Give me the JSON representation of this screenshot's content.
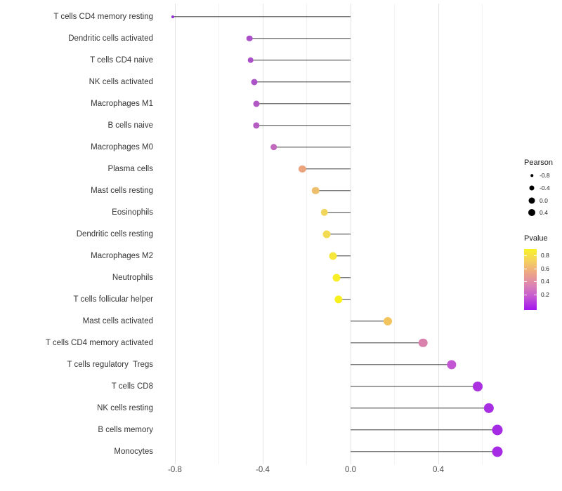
{
  "chart_data": {
    "type": "lollipop",
    "orientation": "horizontal",
    "title": "",
    "xlabel": "",
    "ylabel": "",
    "xlim": [
      -0.89,
      0.74
    ],
    "x_ticks": [
      -0.8,
      -0.4,
      0.0,
      0.4
    ],
    "x_tick_labels": [
      "-0.8",
      "-0.4",
      "0.0",
      "0.4"
    ],
    "x_minor_ticks": [
      -0.6,
      -0.2,
      0.2,
      0.6
    ],
    "grid": "vertical-major-and-minor",
    "stem_color": "#3d3d3d",
    "baseline_x": 0.0,
    "points": [
      {
        "label": "T cells CD4 memory resting",
        "pearson": -0.81,
        "size": 4,
        "color": "#9130d4"
      },
      {
        "label": "Dendritic cells activated",
        "pearson": -0.46,
        "size": 8.6,
        "color": "#aa4fc9"
      },
      {
        "label": "T cells CD4 naive",
        "pearson": -0.455,
        "size": 8.6,
        "color": "#aa4fc9"
      },
      {
        "label": "NK cells activated",
        "pearson": -0.44,
        "size": 9,
        "color": "#ad53c7"
      },
      {
        "label": "Macrophages M1",
        "pearson": -0.43,
        "size": 9,
        "color": "#b158c4"
      },
      {
        "label": "B cells naive",
        "pearson": -0.43,
        "size": 9.3,
        "color": "#b45cc2"
      },
      {
        "label": "Macrophages M0",
        "pearson": -0.35,
        "size": 9.7,
        "color": "#c169bd"
      },
      {
        "label": "Plasma cells",
        "pearson": -0.22,
        "size": 10.3,
        "color": "#eba47e"
      },
      {
        "label": "Mast cells resting",
        "pearson": -0.16,
        "size": 10.6,
        "color": "#edbf6d"
      },
      {
        "label": "Eosinophils",
        "pearson": -0.12,
        "size": 10.6,
        "color": "#f0d65c"
      },
      {
        "label": "Dendritic cells resting",
        "pearson": -0.11,
        "size": 11,
        "color": "#f2da52"
      },
      {
        "label": "Macrophages M2",
        "pearson": -0.08,
        "size": 11,
        "color": "#f5e83b"
      },
      {
        "label": "Neutrophils",
        "pearson": -0.065,
        "size": 11,
        "color": "#f7ee27"
      },
      {
        "label": "T cells follicular helper",
        "pearson": -0.055,
        "size": 11.3,
        "color": "#f8f01d"
      },
      {
        "label": "Mast cells activated",
        "pearson": 0.17,
        "size": 12,
        "color": "#f2c45e"
      },
      {
        "label": "T cells CD4 memory activated",
        "pearson": 0.33,
        "size": 12.6,
        "color": "#d982ae"
      },
      {
        "label": "T cells regulatory  Tregs",
        "pearson": 0.46,
        "size": 13.3,
        "color": "#c356d2"
      },
      {
        "label": "T cells CD8",
        "pearson": 0.58,
        "size": 14,
        "color": "#ab30e0"
      },
      {
        "label": "NK cells resting",
        "pearson": 0.63,
        "size": 14.3,
        "color": "#a82ee2"
      },
      {
        "label": "B cells memory",
        "pearson": 0.67,
        "size": 15,
        "color": "#a52ce4"
      },
      {
        "label": "Monocytes",
        "pearson": 0.67,
        "size": 15,
        "color": "#a52ce4"
      }
    ]
  },
  "legends": {
    "pearson": {
      "title": "Pearson",
      "entries": [
        {
          "label": "-0.8",
          "size": 3.5
        },
        {
          "label": "-0.4",
          "size": 7
        },
        {
          "label": "0.0",
          "size": 9
        },
        {
          "label": "0.4",
          "size": 10
        }
      ],
      "dot_color": "#000000"
    },
    "pvalue": {
      "title": "Pvalue",
      "tick_labels": [
        "0.8",
        "0.6",
        "0.4",
        "0.2"
      ],
      "gradient_stops": [
        "#f9f227",
        "#f4d05f",
        "#eca487",
        "#db83b5",
        "#c153d4",
        "#a315ee"
      ]
    }
  }
}
